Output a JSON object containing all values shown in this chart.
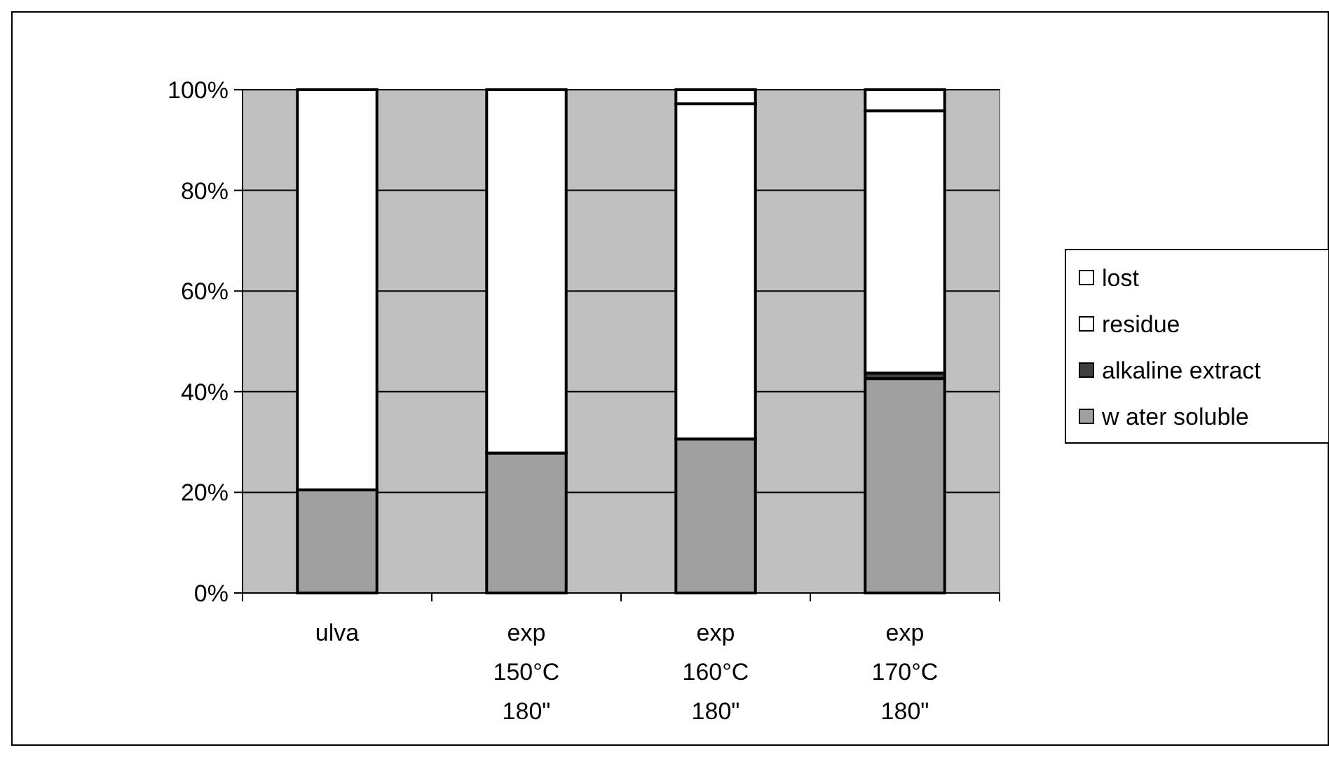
{
  "chart_data": {
    "type": "bar",
    "stacked": true,
    "categories": [
      "ulva",
      "exp\n150°C\n180\"",
      "exp\n160°C\n180\"",
      "exp\n170°C\n180\""
    ],
    "series": [
      {
        "name": "w ater soluble",
        "color": "#a0a0a0",
        "values": [
          20.5,
          27.8,
          30.6,
          42.6
        ]
      },
      {
        "name": "alkaline extract",
        "color": "#404040",
        "values": [
          0,
          0,
          0,
          1.1
        ]
      },
      {
        "name": "residue",
        "color": "#ffffff",
        "values": [
          79.5,
          72.2,
          66.6,
          52.1
        ]
      },
      {
        "name": "lost",
        "color": "#ffffff",
        "values": [
          0,
          0,
          2.8,
          4.2
        ]
      }
    ],
    "ylim": [
      0,
      100
    ],
    "yticks": [
      {
        "value": 0,
        "label": "0%"
      },
      {
        "value": 20,
        "label": "20%"
      },
      {
        "value": 40,
        "label": "40%"
      },
      {
        "value": 60,
        "label": "60%"
      },
      {
        "value": 80,
        "label": "80%"
      },
      {
        "value": 100,
        "label": "100%"
      }
    ],
    "grid": "y",
    "legend": "right"
  }
}
